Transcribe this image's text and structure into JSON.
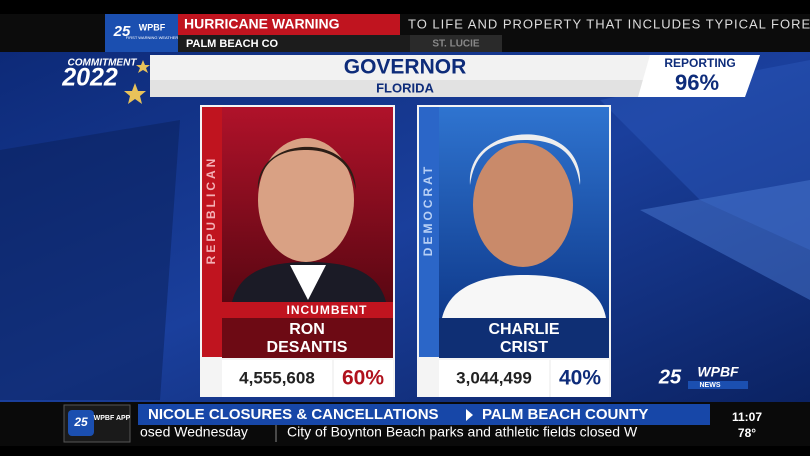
{
  "top_bar": {
    "logo": {
      "number": "25",
      "brand": "WPBF",
      "tagline": "FIRST WARNING WEATHER"
    },
    "alert": "HURRICANE WARNING",
    "crawl": "TO LIFE AND PROPERTY THAT INCLUDES TYPICAL FORECAS",
    "county": "PALM BEACH CO",
    "next_county": "ST. LUCIE"
  },
  "graphic": {
    "logo": {
      "line1": "COMMITMENT",
      "line2": "2022"
    },
    "race": "GOVERNOR",
    "state": "FLORIDA",
    "reporting_label": "REPORTING",
    "reporting": "96%",
    "candidates": [
      {
        "party": "REPUBLICAN",
        "tag": "INCUMBENT",
        "name": [
          "RON",
          "DESANTIS"
        ],
        "votes": "4,555,608",
        "percent": "60%"
      },
      {
        "party": "DEMOCRAT",
        "name": [
          "CHARLIE",
          "CRIST"
        ],
        "votes": "3,044,499",
        "percent": "40%"
      }
    ]
  },
  "station_logo": {
    "number": "25",
    "brand": "WPBF",
    "sub": "NEWS"
  },
  "bottom_bar": {
    "app": {
      "number": "25",
      "label": "WPBF APP"
    },
    "headline": "NICOLE CLOSURES & CANCELLATIONS",
    "subhead": "PALM BEACH COUNTY",
    "crawl": "osed Wednesday",
    "crawl_next": "City of Boynton Beach parks and athletic fields closed W",
    "time": "11:07",
    "temp": "78°"
  }
}
